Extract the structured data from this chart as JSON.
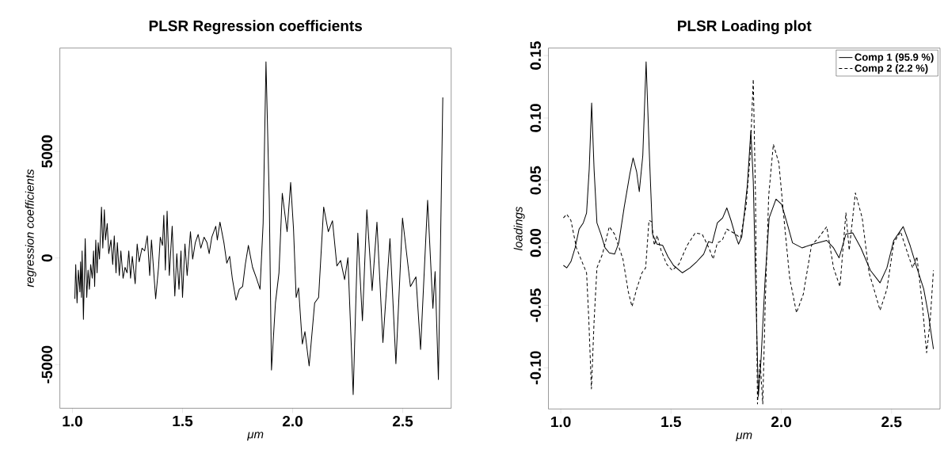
{
  "chart_data": [
    {
      "type": "line",
      "title": "PLSR Regression coefficients",
      "xlabel": "μm",
      "ylabel": "regression coefficients",
      "xlim": [
        0.943,
        2.72
      ],
      "ylim": [
        -7050,
        9850
      ],
      "xticks": [
        {
          "value": 1.0,
          "label": "1.0"
        },
        {
          "value": 1.5,
          "label": "1.5"
        },
        {
          "value": 2.0,
          "label": "2.0"
        },
        {
          "value": 2.5,
          "label": "2.5"
        }
      ],
      "yticks": [
        -5000,
        0,
        5000
      ],
      "series": [
        {
          "color": "#000000",
          "line_style": "solid",
          "x": [
            1.011,
            1.015,
            1.021,
            1.027,
            1.034,
            1.037,
            1.041,
            1.044,
            1.05,
            1.058,
            1.065,
            1.071,
            1.077,
            1.083,
            1.09,
            1.096,
            1.101,
            1.106,
            1.112,
            1.117,
            1.123,
            1.132,
            1.138,
            1.145,
            1.15,
            1.158,
            1.165,
            1.175,
            1.183,
            1.19,
            1.198,
            1.204,
            1.213,
            1.22,
            1.23,
            1.239,
            1.248,
            1.256,
            1.264,
            1.272,
            1.285,
            1.294,
            1.303,
            1.316,
            1.328,
            1.34,
            1.351,
            1.359,
            1.378,
            1.391,
            1.399,
            1.409,
            1.415,
            1.422,
            1.43,
            1.44,
            1.453,
            1.465,
            1.474,
            1.484,
            1.493,
            1.5,
            1.511,
            1.521,
            1.536,
            1.546,
            1.558,
            1.571,
            1.583,
            1.598,
            1.611,
            1.621,
            1.633,
            1.651,
            1.658,
            1.67,
            1.688,
            1.701,
            1.714,
            1.726,
            1.743,
            1.758,
            1.773,
            1.785,
            1.799,
            1.818,
            1.836,
            1.852,
            1.866,
            1.879,
            1.894,
            1.904,
            1.922,
            1.938,
            1.953,
            1.975,
            1.991,
            2.004,
            2.016,
            2.027,
            2.044,
            2.056,
            2.075,
            2.1,
            2.118,
            2.141,
            2.162,
            2.181,
            2.201,
            2.218,
            2.236,
            2.251,
            2.275,
            2.296,
            2.317,
            2.337,
            2.361,
            2.383,
            2.41,
            2.442,
            2.469,
            2.499,
            2.535,
            2.56,
            2.581,
            2.613,
            2.637,
            2.647,
            2.662,
            2.682
          ],
          "values": [
            -1915,
            -308,
            -2108,
            -565,
            -1594,
            -180,
            -1851,
            334,
            -2879,
            913,
            -1851,
            -565,
            -1465,
            -308,
            -951,
            334,
            -1337,
            848,
            -694,
            720,
            -51,
            2391,
            463,
            2262,
            848,
            1620,
            206,
            848,
            -308,
            1041,
            -694,
            720,
            -823,
            334,
            -951,
            -437,
            -694,
            334,
            -951,
            77,
            -1208,
            655,
            -180,
            463,
            334,
            1041,
            -823,
            848,
            -1915,
            -437,
            977,
            591,
            2005,
            -565,
            2198,
            -823,
            1491,
            -1787,
            206,
            -1465,
            334,
            -1851,
            655,
            -823,
            1234,
            -51,
            720,
            1105,
            463,
            977,
            720,
            206,
            977,
            1491,
            848,
            1684,
            720,
            -244,
            77,
            -951,
            -1979,
            -1465,
            -1337,
            -308,
            591,
            -437,
            -951,
            -1465,
            1620,
            9203,
            2648,
            -5257,
            -2108,
            -694,
            3033,
            1234,
            3547,
            1362,
            -1851,
            -1401,
            -4036,
            -3457,
            -5064,
            -2108,
            -1851,
            2391,
            1234,
            1748,
            -373,
            -116,
            -1015,
            13,
            -6414,
            1170,
            -2943,
            2262,
            -1529,
            1684,
            -3972,
            913,
            -4961,
            1877,
            -1337,
            -887,
            -4293,
            2712,
            -2365,
            -630,
            -5707,
            7532
          ]
        }
      ]
    },
    {
      "type": "line",
      "title": "PLSR Loading plot",
      "xlabel": "μm",
      "ylabel": "loadings",
      "xlim": [
        0.944,
        2.72
      ],
      "ylim": [
        -0.133,
        0.156
      ],
      "xticks": [
        {
          "value": 1.0,
          "label": "1.0"
        },
        {
          "value": 1.5,
          "label": "1.5"
        },
        {
          "value": 2.0,
          "label": "2.0"
        },
        {
          "value": 2.5,
          "label": "2.5"
        }
      ],
      "yticks": [
        {
          "value": -0.1,
          "label": "-0.10"
        },
        {
          "value": -0.05,
          "label": "-0.05"
        },
        {
          "value": 0.0,
          "label": "0.00"
        },
        {
          "value": 0.05,
          "label": "0.05"
        },
        {
          "value": 0.1,
          "label": "0.10"
        },
        {
          "value": 0.15,
          "label": "0.15"
        }
      ],
      "legend": "top right",
      "series": [
        {
          "name": "Comp 1 (95.9 %)",
          "color": "#000000",
          "line_style": "solid",
          "x": [
            1.012,
            1.027,
            1.046,
            1.065,
            1.083,
            1.102,
            1.117,
            1.129,
            1.14,
            1.151,
            1.164,
            1.182,
            1.201,
            1.22,
            1.244,
            1.263,
            1.288,
            1.313,
            1.328,
            1.344,
            1.356,
            1.372,
            1.387,
            1.402,
            1.416,
            1.437,
            1.462,
            1.486,
            1.511,
            1.551,
            1.586,
            1.617,
            1.648,
            1.67,
            1.687,
            1.71,
            1.734,
            1.753,
            1.772,
            1.79,
            1.806,
            1.821,
            1.846,
            1.862,
            1.873,
            1.886,
            1.896,
            1.908,
            1.927,
            1.945,
            1.976,
            2.001,
            2.026,
            2.051,
            2.094,
            2.144,
            2.206,
            2.237,
            2.262,
            2.293,
            2.324,
            2.361,
            2.404,
            2.448,
            2.479,
            2.51,
            2.553,
            2.584,
            2.615,
            2.646,
            2.667,
            2.69
          ],
          "values": [
            -0.018,
            -0.02,
            -0.015,
            -0.004,
            0.011,
            0.016,
            0.024,
            0.059,
            0.112,
            0.059,
            0.016,
            0.007,
            -0.004,
            -0.008,
            -0.009,
            0.0,
            0.029,
            0.055,
            0.068,
            0.057,
            0.041,
            0.07,
            0.145,
            0.07,
            0.007,
            -0.001,
            -0.002,
            -0.011,
            -0.018,
            -0.024,
            -0.02,
            -0.015,
            -0.009,
            0.001,
            0.0,
            0.016,
            0.02,
            0.028,
            0.018,
            0.007,
            -0.001,
            0.005,
            0.046,
            0.09,
            0.049,
            -0.05,
            -0.123,
            -0.094,
            -0.028,
            0.02,
            0.035,
            0.031,
            0.016,
            0.0,
            -0.004,
            -0.001,
            0.002,
            -0.004,
            -0.012,
            0.007,
            0.008,
            -0.004,
            -0.022,
            -0.032,
            -0.02,
            0.002,
            0.013,
            -0.002,
            -0.02,
            -0.037,
            -0.057,
            -0.085
          ]
        },
        {
          "name": "Comp 2 (2.2 %)",
          "color": "#000000",
          "line_style": "dashed",
          "x": [
            1.012,
            1.027,
            1.046,
            1.071,
            1.096,
            1.117,
            1.127,
            1.139,
            1.151,
            1.164,
            1.189,
            1.22,
            1.244,
            1.282,
            1.306,
            1.323,
            1.344,
            1.368,
            1.385,
            1.4,
            1.412,
            1.424,
            1.437,
            1.455,
            1.48,
            1.505,
            1.536,
            1.573,
            1.61,
            1.641,
            1.672,
            1.691,
            1.71,
            1.732,
            1.753,
            1.784,
            1.815,
            1.84,
            1.859,
            1.873,
            1.883,
            1.892,
            1.904,
            1.916,
            1.927,
            1.943,
            1.964,
            1.989,
            2.014,
            2.038,
            2.069,
            2.1,
            2.137,
            2.169,
            2.206,
            2.237,
            2.266,
            2.293,
            2.308,
            2.336,
            2.367,
            2.398,
            2.417,
            2.448,
            2.479,
            2.51,
            2.541,
            2.578,
            2.596,
            2.615,
            2.64,
            2.659,
            2.675,
            2.69
          ],
          "values": [
            0.02,
            0.023,
            0.018,
            -0.004,
            -0.015,
            -0.024,
            -0.061,
            -0.117,
            -0.063,
            -0.02,
            -0.009,
            0.013,
            0.007,
            -0.013,
            -0.039,
            -0.051,
            -0.037,
            -0.024,
            -0.02,
            0.018,
            0.017,
            -0.002,
            0.006,
            -0.006,
            -0.017,
            -0.022,
            -0.017,
            -0.002,
            0.008,
            0.007,
            -0.004,
            -0.013,
            0.0,
            0.002,
            0.011,
            0.008,
            0.004,
            0.029,
            0.07,
            0.131,
            0.038,
            -0.129,
            -0.094,
            -0.129,
            -0.05,
            0.038,
            0.079,
            0.064,
            0.016,
            -0.028,
            -0.056,
            -0.041,
            -0.002,
            0.004,
            0.013,
            -0.02,
            -0.035,
            0.024,
            -0.006,
            0.04,
            0.02,
            -0.024,
            -0.035,
            -0.054,
            -0.037,
            0.0,
            0.009,
            -0.011,
            -0.02,
            -0.011,
            -0.05,
            -0.088,
            -0.063,
            -0.022
          ]
        }
      ]
    }
  ]
}
